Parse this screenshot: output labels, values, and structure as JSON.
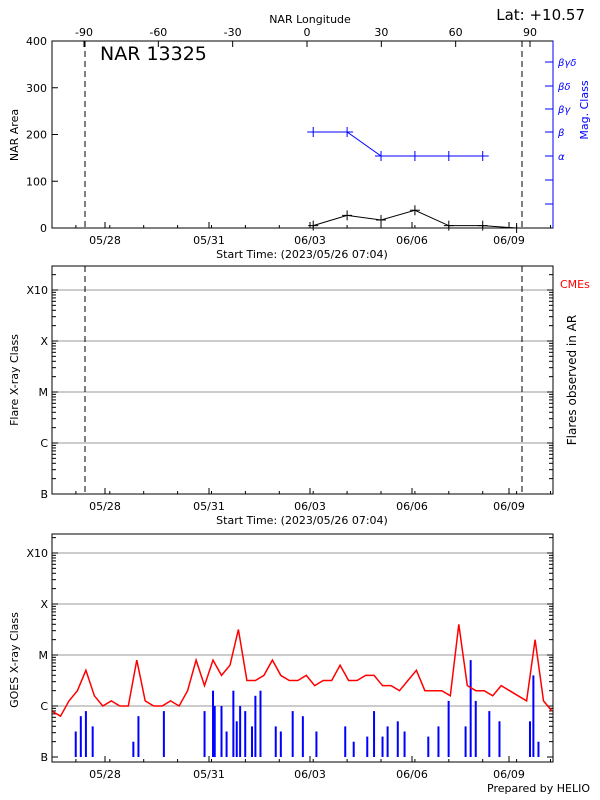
{
  "chart_data": [
    {
      "type": "line",
      "title": "NAR 13325",
      "annotation": "Lat: +10.57",
      "xlabel": "Start Time: (2023/05/26 07:04)",
      "top_xlabel": "NAR Longitude",
      "ylabel": "NAR Area",
      "right_ylabel": "Mag. Class",
      "x_ticks": [
        "05/28",
        "05/31",
        "06/03",
        "06/06",
        "06/09"
      ],
      "longitude_ticks": [
        "-90",
        "-60",
        "-30",
        "0",
        "30",
        "60",
        "90"
      ],
      "ylim": [
        0,
        400
      ],
      "y_ticks": [
        "0",
        "100",
        "200",
        "300",
        "400"
      ],
      "mag_class_ticks": [
        "α",
        "β",
        "βγ",
        "βδ",
        "βγδ"
      ],
      "limb_markers_longitude": [
        -90,
        90
      ],
      "series": [
        {
          "dates": [
            "06/03",
            "06/04",
            "06/05",
            "06/06",
            "06/07",
            "06/08",
            "06/09"
          ],
          "values": [
            5,
            27,
            17,
            38,
            5,
            5,
            0
          ],
          "color": "#000000"
        },
        {
          "dates": [
            "06/03",
            "06/04",
            "06/05",
            "06/06",
            "06/07",
            "06/08"
          ],
          "mag_class": [
            "β",
            "β",
            "α",
            "α",
            "α",
            "α"
          ],
          "color": "#0000ff"
        }
      ]
    },
    {
      "type": "bar",
      "xlabel": "Start Time: (2023/05/26 07:04)",
      "ylabel": "Flare X-ray Class",
      "right_ylabel": "Flares observed in AR",
      "legend": "CMEs",
      "legend_color": "#ff0000",
      "x_ticks": [
        "05/28",
        "05/31",
        "06/03",
        "06/06",
        "06/09"
      ],
      "y_ticks": [
        "B",
        "C",
        "M",
        "X",
        "X10"
      ],
      "values": []
    },
    {
      "type": "line",
      "ylabel": "GOES X-ray Class",
      "x_ticks": [
        "05/28",
        "05/31",
        "06/03",
        "06/06",
        "06/09"
      ],
      "y_ticks": [
        "B",
        "C",
        "M",
        "X",
        "X10"
      ],
      "x_unit": "days since start (2023/05/26 07:04)",
      "x_step_days": 0.25,
      "series": [
        {
          "color": "#ff0000",
          "values": [
            0.9,
            0.8,
            1.1,
            1.3,
            1.7,
            1.2,
            1.0,
            1.1,
            1.0,
            1.0,
            1.9,
            1.1,
            1.0,
            1.0,
            1.1,
            1.0,
            1.3,
            1.9,
            1.4,
            1.9,
            1.6,
            1.8,
            2.5,
            1.5,
            1.5,
            1.6,
            1.9,
            1.6,
            1.5,
            1.5,
            1.6,
            1.4,
            1.5,
            1.5,
            1.8,
            1.5,
            1.5,
            1.6,
            1.6,
            1.4,
            1.4,
            1.3,
            1.5,
            1.7,
            1.3,
            1.3,
            1.3,
            1.2,
            2.6,
            1.4,
            1.3,
            1.3,
            1.2,
            1.4,
            1.3,
            1.2,
            1.1,
            2.3,
            1.1,
            0.9
          ]
        },
        {
          "color": "#0000ff",
          "events": [
            [
              0.7,
              0.5
            ],
            [
              0.85,
              0.8
            ],
            [
              1.0,
              0.9
            ],
            [
              1.2,
              0.6
            ],
            [
              2.4,
              0.3
            ],
            [
              2.55,
              0.8
            ],
            [
              3.3,
              0.9
            ],
            [
              4.5,
              0.9
            ],
            [
              4.75,
              1.3
            ],
            [
              4.8,
              1.0
            ],
            [
              5.0,
              1.0
            ],
            [
              5.15,
              0.5
            ],
            [
              5.35,
              1.3
            ],
            [
              5.45,
              0.7
            ],
            [
              5.55,
              1.0
            ],
            [
              5.7,
              0.9
            ],
            [
              5.9,
              0.6
            ],
            [
              6.0,
              1.2
            ],
            [
              6.15,
              1.3
            ],
            [
              6.6,
              0.6
            ],
            [
              6.75,
              0.5
            ],
            [
              7.1,
              0.9
            ],
            [
              7.4,
              0.8
            ],
            [
              7.8,
              0.5
            ],
            [
              8.65,
              0.6
            ],
            [
              8.9,
              0.3
            ],
            [
              9.3,
              0.4
            ],
            [
              9.5,
              0.9
            ],
            [
              9.75,
              0.4
            ],
            [
              9.9,
              0.6
            ],
            [
              10.2,
              0.7
            ],
            [
              10.4,
              0.5
            ],
            [
              11.1,
              0.4
            ],
            [
              11.4,
              0.6
            ],
            [
              11.7,
              1.1
            ],
            [
              12.2,
              0.6
            ],
            [
              12.35,
              1.9
            ],
            [
              12.5,
              1.1
            ],
            [
              12.9,
              0.9
            ],
            [
              13.2,
              0.7
            ],
            [
              14.1,
              0.7
            ],
            [
              14.2,
              1.6
            ],
            [
              14.35,
              0.3
            ]
          ]
        }
      ]
    }
  ],
  "footer": "Prepared by HELIO"
}
